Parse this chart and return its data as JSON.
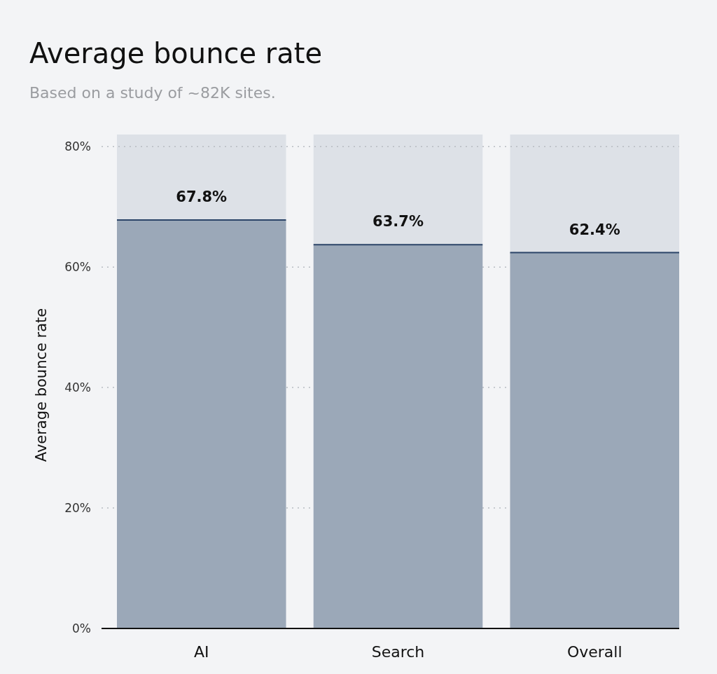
{
  "chart_data": {
    "type": "bar",
    "title": "Average bounce rate",
    "subtitle": "Based on a study of ~82K sites.",
    "ylabel": "Average bounce rate",
    "categories": [
      "AI",
      "Search",
      "Overall"
    ],
    "values": [
      67.8,
      63.7,
      62.4
    ],
    "value_labels": [
      "67.8%",
      "63.7%",
      "62.4%"
    ],
    "color": "#9ba8b8",
    "ylim": [
      0,
      82
    ],
    "yticks": [
      {
        "value": 0,
        "label": "0%"
      },
      {
        "value": 20,
        "label": "20%"
      },
      {
        "value": 40,
        "label": "40%"
      },
      {
        "value": 60,
        "label": "60%"
      },
      {
        "value": 80,
        "label": "80%"
      }
    ],
    "grid": "y"
  }
}
